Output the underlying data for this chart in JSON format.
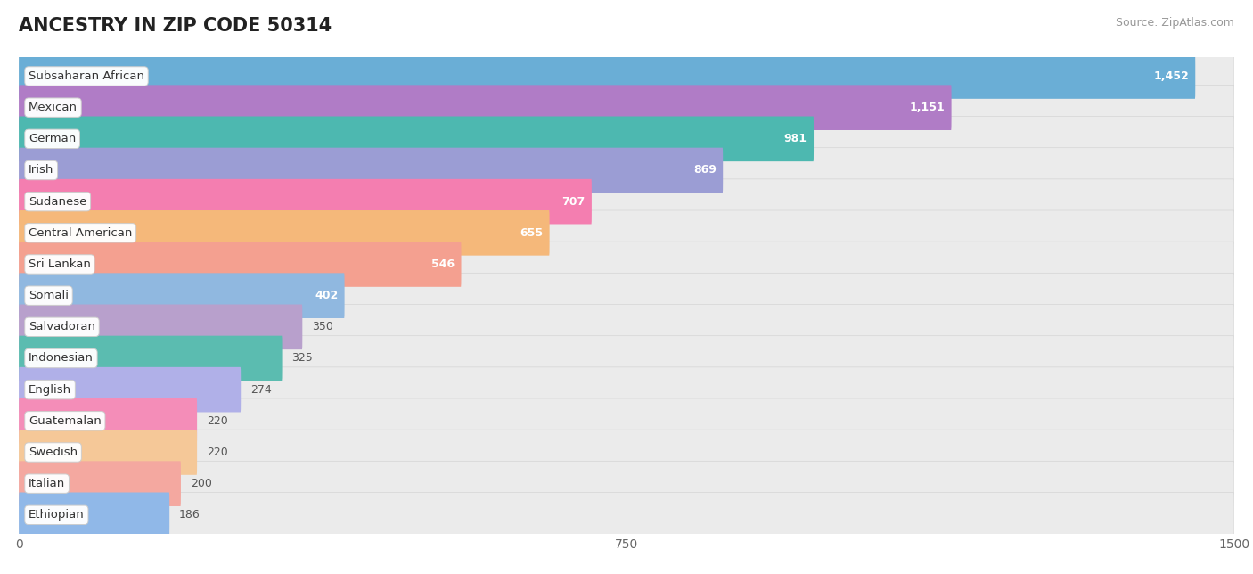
{
  "title": "ANCESTRY IN ZIP CODE 50314",
  "source": "Source: ZipAtlas.com",
  "categories": [
    "Subsaharan African",
    "Mexican",
    "German",
    "Irish",
    "Sudanese",
    "Central American",
    "Sri Lankan",
    "Somali",
    "Salvadoran",
    "Indonesian",
    "English",
    "Guatemalan",
    "Swedish",
    "Italian",
    "Ethiopian"
  ],
  "values": [
    1452,
    1151,
    981,
    869,
    707,
    655,
    546,
    402,
    350,
    325,
    274,
    220,
    220,
    200,
    186
  ],
  "colors": [
    "#6aaed6",
    "#b07cc6",
    "#4db8b0",
    "#9b9dd4",
    "#f47eb0",
    "#f5b87a",
    "#f4a090",
    "#90b8e0",
    "#b8a0cc",
    "#5bbcb0",
    "#b0b0e8",
    "#f48db8",
    "#f5c898",
    "#f4a8a0",
    "#90b8e8"
  ],
  "xlim": [
    0,
    1500
  ],
  "xticks": [
    0,
    750,
    1500
  ],
  "value_inside_threshold": 400,
  "bar_height": 0.72,
  "label_fontsize": 9.5,
  "value_fontsize": 9,
  "title_fontsize": 15,
  "source_fontsize": 9
}
